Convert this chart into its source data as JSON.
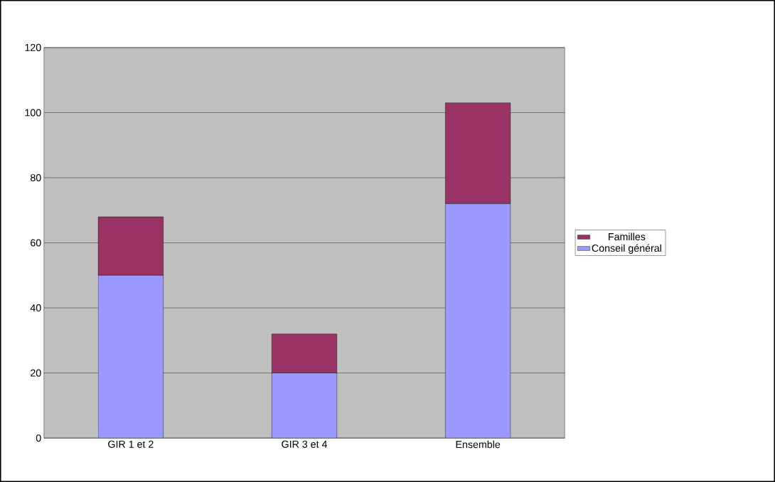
{
  "chart_data": {
    "type": "bar",
    "stacked": true,
    "categories": [
      "GIR 1 et 2",
      "GIR 3 et 4",
      "Ensemble"
    ],
    "series": [
      {
        "name": "Conseil général",
        "color": "#9999ff",
        "values": [
          50,
          20,
          72
        ]
      },
      {
        "name": "Familles",
        "color": "#993366",
        "values": [
          18,
          12,
          31
        ]
      }
    ],
    "ylim": [
      0,
      120
    ],
    "yticks": [
      0,
      20,
      40,
      60,
      80,
      100,
      120
    ],
    "grid": "y",
    "legend": "right"
  }
}
